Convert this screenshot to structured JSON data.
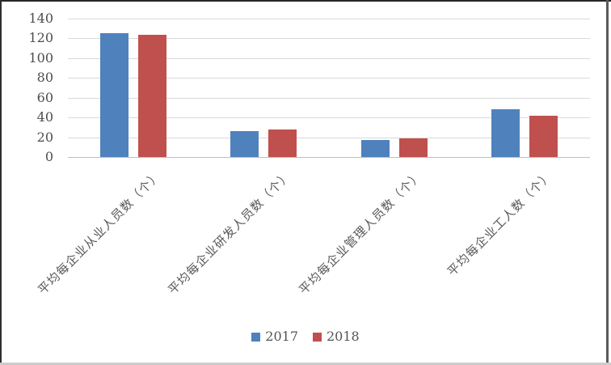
{
  "chart_data": {
    "type": "bar",
    "title": "",
    "xlabel": "",
    "ylabel": "",
    "categories": [
      "平均每企业从业人员数（个）",
      "平均每企业研发人员数（个）",
      "平均每企业管理人员数（个）",
      "平均每企业工人数（个）"
    ],
    "series": [
      {
        "name": "2017",
        "color": "#4F81BD",
        "values": [
          125,
          26.5,
          17.5,
          48
        ]
      },
      {
        "name": "2018",
        "color": "#C0504D",
        "values": [
          123.5,
          27.5,
          18.5,
          42
        ]
      }
    ],
    "ylim": [
      0,
      140
    ],
    "yticks": [
      0,
      20,
      40,
      60,
      80,
      100,
      120,
      140
    ],
    "grid": true,
    "legend_position": "bottom",
    "colors": {
      "gridline": "#d9d9d9",
      "axis_line": "#bfbfbf",
      "tick_text": "#4d4d4d",
      "category_text": "#595959",
      "legend_text": "#555555"
    }
  }
}
